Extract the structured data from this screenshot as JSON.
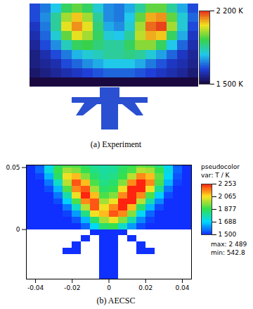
{
  "chart_data": [
    {
      "type": "heatmap",
      "title": "(a) Experiment",
      "tick_labels": false,
      "cells": [
        [
          1650,
          1700,
          1780,
          1900,
          1950,
          1900,
          1800,
          1720,
          1700,
          1750,
          1850,
          1950,
          1950,
          1850,
          1750,
          1650
        ],
        [
          1650,
          1720,
          1850,
          2000,
          2080,
          2000,
          1850,
          1720,
          1700,
          1780,
          1950,
          2100,
          2120,
          1950,
          1800,
          1680
        ],
        [
          1620,
          1700,
          1850,
          2050,
          2120,
          2050,
          1880,
          1750,
          1720,
          1800,
          2000,
          2150,
          2180,
          2000,
          1800,
          1650
        ],
        [
          1600,
          1680,
          1800,
          1950,
          2050,
          2000,
          1900,
          1800,
          1780,
          1850,
          2020,
          2100,
          2080,
          1900,
          1750,
          1620
        ],
        [
          1580,
          1650,
          1720,
          1820,
          1900,
          1920,
          1880,
          1850,
          1850,
          1900,
          1980,
          1980,
          1900,
          1780,
          1680,
          1600
        ],
        [
          1560,
          1600,
          1650,
          1700,
          1760,
          1800,
          1820,
          1850,
          1850,
          1870,
          1850,
          1800,
          1740,
          1680,
          1620,
          1580
        ],
        [
          1560,
          1580,
          1600,
          1650,
          1680,
          1720,
          1750,
          1780,
          1780,
          1780,
          1750,
          1700,
          1660,
          1620,
          1600,
          1570
        ],
        [
          1540,
          1560,
          1580,
          1600,
          1620,
          1640,
          1660,
          1680,
          1680,
          1680,
          1660,
          1640,
          1620,
          1600,
          1580,
          1550
        ],
        [
          1500,
          1500,
          1500,
          1500,
          1500,
          1500,
          1500,
          1500,
          1500,
          1500,
          1500,
          1500,
          1500,
          1500,
          1500,
          1500
        ]
      ],
      "colorbar": {
        "range": [
          1500,
          2200
        ],
        "ticks": [
          {
            "value": 2200,
            "label": "2 200 K"
          },
          {
            "value": 1500,
            "label": "1 500 K"
          }
        ]
      }
    },
    {
      "type": "heatmap",
      "title": "(b) AECSC",
      "x": [
        -0.0425,
        -0.0375,
        -0.0325,
        -0.0275,
        -0.0225,
        -0.0175,
        -0.0125,
        -0.0075,
        -0.0025,
        0.0025,
        0.0075,
        0.0125,
        0.0175,
        0.0225,
        0.0275,
        0.0325,
        0.0375,
        0.0425
      ],
      "y": [
        0.0525,
        0.0475,
        0.0425,
        0.0375,
        0.0325,
        0.0275,
        0.0225,
        0.0175,
        0.0125,
        0.0075,
        0.0025,
        -0.0025,
        -0.0075,
        -0.0125,
        -0.0175,
        -0.0225,
        -0.0275,
        -0.0325,
        -0.0375
      ],
      "cells": [
        [
          1500,
          1550,
          1700,
          1850,
          1900,
          1900,
          1850,
          1800,
          1780,
          1800,
          1850,
          1880,
          1920,
          1900,
          1820,
          1680,
          1550,
          1500
        ],
        [
          1500,
          1560,
          1720,
          1880,
          1980,
          1950,
          1880,
          1820,
          1790,
          1800,
          1860,
          1900,
          2000,
          1980,
          1880,
          1720,
          1560,
          1500
        ],
        [
          1500,
          1520,
          1650,
          1850,
          2050,
          2100,
          1950,
          1850,
          1800,
          1820,
          1880,
          2000,
          2150,
          2100,
          1920,
          1700,
          1540,
          1500
        ],
        [
          1500,
          1500,
          1580,
          1750,
          2000,
          2200,
          2100,
          1900,
          1820,
          1850,
          1950,
          2150,
          2250,
          2150,
          1900,
          1650,
          1520,
          1500
        ],
        [
          1500,
          1500,
          1530,
          1650,
          1900,
          2150,
          2200,
          1980,
          1850,
          1880,
          2050,
          2250,
          2250,
          2050,
          1800,
          1580,
          1500,
          1500
        ],
        [
          1500,
          1500,
          1500,
          1580,
          1780,
          2050,
          2250,
          2100,
          1900,
          1950,
          2150,
          2250,
          2150,
          1900,
          1680,
          1530,
          1500,
          1500
        ],
        [
          1500,
          1500,
          1500,
          1530,
          1680,
          1900,
          2150,
          2200,
          1980,
          2050,
          2250,
          2250,
          2000,
          1780,
          1600,
          1500,
          1500,
          1500
        ],
        [
          1500,
          1500,
          1500,
          1500,
          1580,
          1750,
          2000,
          2200,
          2050,
          2150,
          2250,
          2100,
          1850,
          1650,
          1530,
          1500,
          1500,
          1500
        ],
        [
          1500,
          1500,
          1500,
          1500,
          1520,
          1620,
          1820,
          2050,
          2100,
          2200,
          2150,
          1950,
          1700,
          1560,
          1500,
          1500,
          1500,
          1500
        ],
        [
          1500,
          1500,
          1500,
          1500,
          1500,
          1540,
          1650,
          1850,
          1980,
          2050,
          1950,
          1780,
          1600,
          1520,
          1500,
          1500,
          1500,
          1500
        ],
        [
          1500,
          1500,
          1500,
          1500,
          1500,
          1500,
          1560,
          1700,
          1850,
          1880,
          1750,
          1620,
          1530,
          1500,
          1500,
          1500,
          1500,
          1500
        ],
        [
          null,
          null,
          null,
          null,
          null,
          null,
          null,
          1500,
          1500,
          1500,
          1500,
          null,
          null,
          null,
          null,
          null,
          null,
          null
        ],
        [
          null,
          null,
          null,
          null,
          null,
          null,
          1500,
          null,
          1500,
          1500,
          null,
          1500,
          null,
          null,
          null,
          null,
          null,
          null
        ],
        [
          null,
          null,
          null,
          null,
          null,
          1500,
          null,
          null,
          1500,
          1500,
          null,
          null,
          1500,
          null,
          null,
          null,
          null,
          null
        ],
        [
          null,
          null,
          null,
          null,
          1500,
          1500,
          null,
          null,
          1500,
          1500,
          null,
          null,
          1500,
          1500,
          null,
          null,
          null,
          null
        ],
        [
          null,
          null,
          null,
          null,
          null,
          null,
          null,
          null,
          1500,
          1500,
          null,
          null,
          null,
          null,
          null,
          null,
          null,
          null
        ],
        [
          null,
          null,
          null,
          null,
          null,
          null,
          null,
          null,
          1500,
          1500,
          null,
          null,
          null,
          null,
          null,
          null,
          null,
          null
        ],
        [
          null,
          null,
          null,
          null,
          null,
          null,
          null,
          null,
          1500,
          1500,
          null,
          null,
          null,
          null,
          null,
          null,
          null,
          null
        ],
        [
          null,
          null,
          null,
          null,
          null,
          null,
          null,
          null,
          1500,
          1500,
          null,
          null,
          null,
          null,
          null,
          null,
          null,
          null
        ]
      ],
      "xlim": [
        -0.045,
        0.045
      ],
      "ylim": [
        -0.04,
        0.052
      ],
      "xticks": [
        -0.04,
        -0.02,
        0,
        0.02,
        0.04
      ],
      "yticks": [
        0,
        0.05
      ],
      "colorbar": {
        "title": "pseudocolor",
        "label": "var: T / K",
        "range": [
          1500,
          2253
        ],
        "ticks": [
          {
            "value": 2253,
            "label": "2 253"
          },
          {
            "value": 2065,
            "label": "2 065"
          },
          {
            "value": 1877,
            "label": "1 877"
          },
          {
            "value": 1688,
            "label": "1 688"
          },
          {
            "value": 1500,
            "label": "1 500"
          }
        ],
        "annotations": [
          "max: 2 489",
          "min: 542.8"
        ]
      }
    }
  ]
}
